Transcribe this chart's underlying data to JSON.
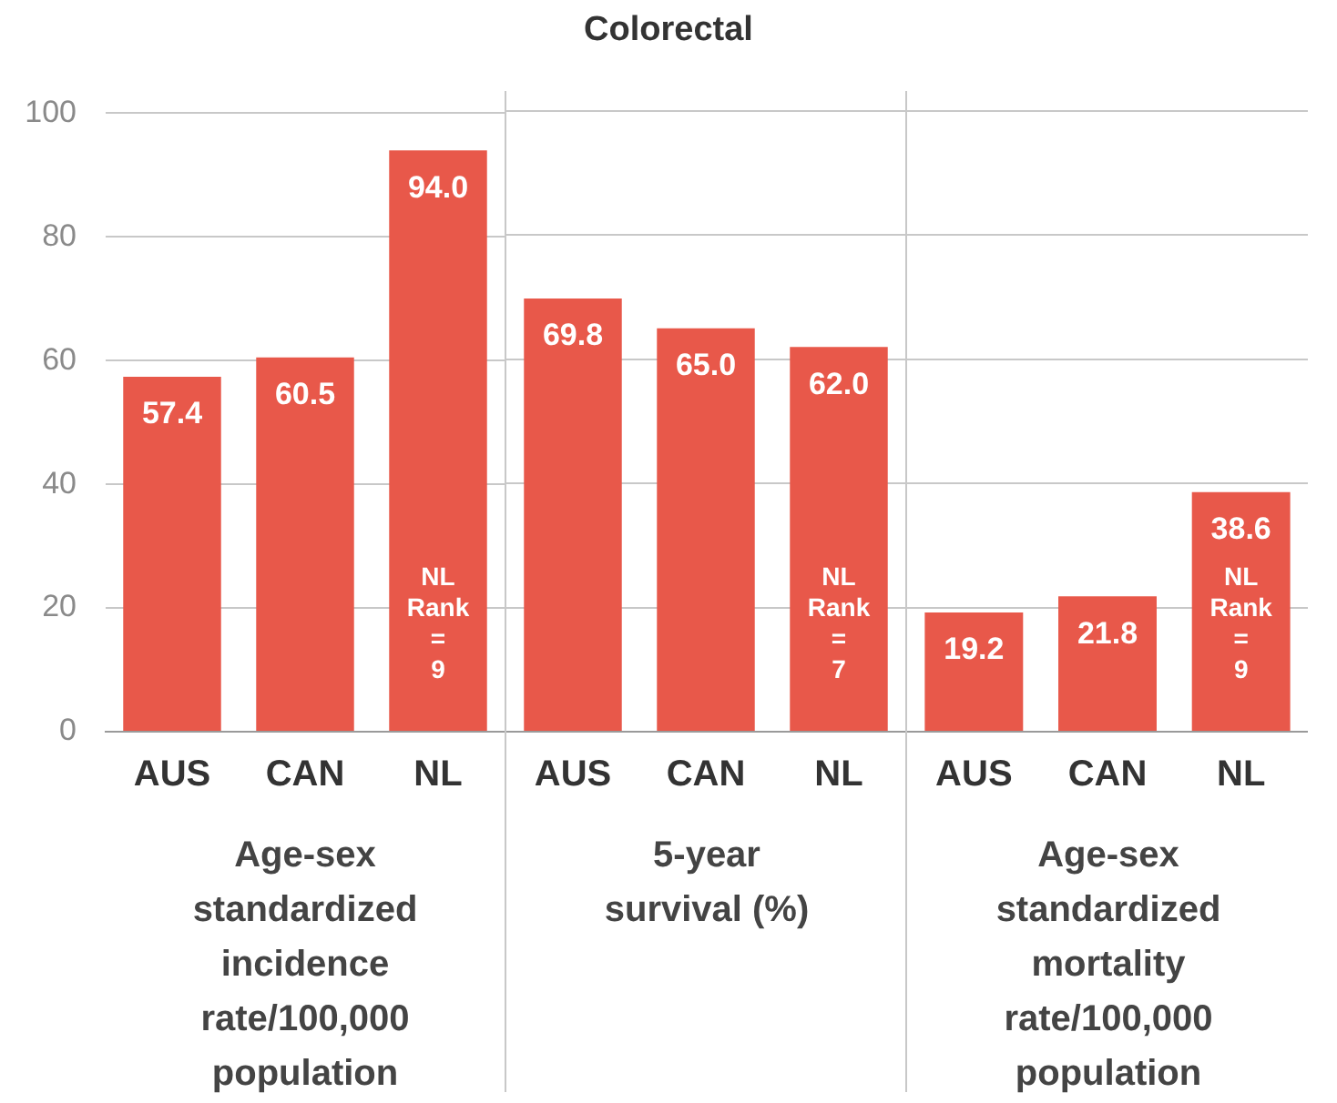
{
  "chart_data": [
    {
      "type": "bar",
      "xlabel": "Age-sex standardized incidence rate/100,000 population",
      "categories": [
        "AUS",
        "CAN",
        "NL"
      ],
      "values": [
        57.4,
        60.5,
        94.0
      ],
      "value_labels": [
        "57.4",
        "60.5",
        "94.0"
      ],
      "color": "#e8584a",
      "ylim": [
        0,
        100
      ],
      "yticks": [
        0,
        20,
        40,
        60,
        80,
        100
      ],
      "grid": "y",
      "annotations": [
        "NL Rank = 9"
      ]
    },
    {
      "type": "bar",
      "title": "Colorectal",
      "xlabel": "5-year survival (%)",
      "categories": [
        "AUS",
        "CAN",
        "NL"
      ],
      "values": [
        69.8,
        65.0,
        62.0
      ],
      "value_labels": [
        "69.8",
        "65.0",
        "62.0"
      ],
      "color": "#e8584a",
      "ylim": [
        0,
        100
      ],
      "yticks": [
        0,
        20,
        40,
        60,
        80,
        100
      ],
      "grid": "y",
      "tick_labels": "x",
      "annotations": [
        "NL Rank = 7"
      ]
    },
    {
      "type": "bar",
      "xlabel": "Age-sex standardized mortality rate/100,000 population",
      "categories": [
        "AUS",
        "CAN",
        "NL"
      ],
      "values": [
        19.2,
        21.8,
        38.6
      ],
      "value_labels": [
        "19.2",
        "21.8",
        "38.6"
      ],
      "color": "#e8584a",
      "ylim": [
        0,
        100
      ],
      "yticks": [
        0,
        20,
        40,
        60,
        80,
        100
      ],
      "grid": "y",
      "tick_labels": "x",
      "annotations": [
        "NL Rank = 9"
      ]
    }
  ]
}
